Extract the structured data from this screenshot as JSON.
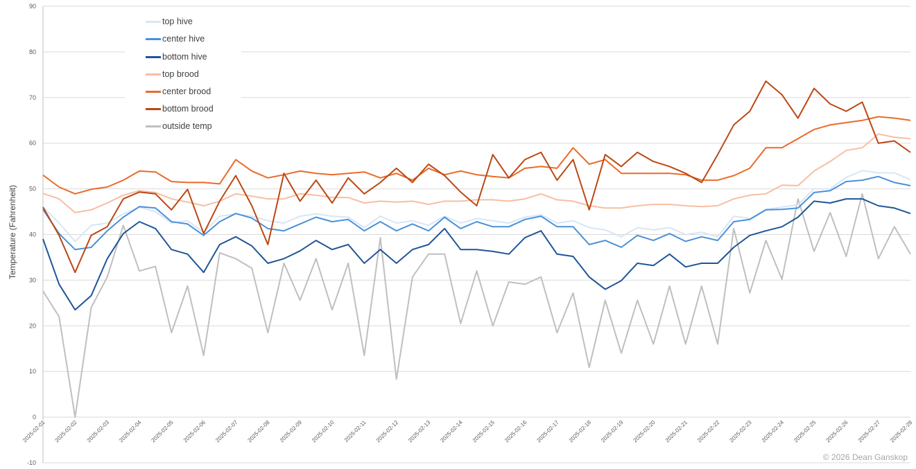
{
  "chart_data": {
    "type": "line",
    "title": "",
    "xlabel": "",
    "ylabel": "Temperature (Fahrenheit)",
    "ylim": [
      -10,
      90
    ],
    "yticks": [
      "-10",
      "0",
      "10",
      "20",
      "30",
      "40",
      "50",
      "60",
      "70",
      "80",
      "90"
    ],
    "xticks": [
      "2025-02-01",
      "2025-02-02",
      "2025-02-03",
      "2025-02-04",
      "2025-02-05",
      "2025-02-06",
      "2025-02-07",
      "2025-02-08",
      "2025-02-09",
      "2025-02-10",
      "2025-02-11",
      "2025-02-12",
      "2025-02-13",
      "2025-02-14",
      "2025-02-15",
      "2025-02-16",
      "2025-02-17",
      "2025-02-18",
      "2025-02-19",
      "2025-02-20",
      "2025-02-21",
      "2025-02-22",
      "2025-02-23",
      "2025-02-24",
      "2025-02-25",
      "2025-02-26",
      "2025-02-27",
      "2025-02-28"
    ],
    "grid": true,
    "legend_position": "top-left",
    "x": [
      "2025-02-01T00:00",
      "2025-02-01T12:00",
      "2025-02-02T00:00",
      "2025-02-02T12:00",
      "2025-02-03T00:00",
      "2025-02-03T12:00",
      "2025-02-04T00:00",
      "2025-02-04T12:00",
      "2025-02-05T00:00",
      "2025-02-05T12:00",
      "2025-02-06T00:00",
      "2025-02-06T12:00",
      "2025-02-07T00:00",
      "2025-02-07T12:00",
      "2025-02-08T00:00",
      "2025-02-08T12:00",
      "2025-02-09T00:00",
      "2025-02-09T12:00",
      "2025-02-10T00:00",
      "2025-02-10T12:00",
      "2025-02-11T00:00",
      "2025-02-11T12:00",
      "2025-02-12T00:00",
      "2025-02-12T12:00",
      "2025-02-13T00:00",
      "2025-02-13T12:00",
      "2025-02-14T00:00",
      "2025-02-14T12:00",
      "2025-02-15T00:00",
      "2025-02-15T12:00",
      "2025-02-16T00:00",
      "2025-02-16T12:00",
      "2025-02-17T00:00",
      "2025-02-17T12:00",
      "2025-02-18T00:00",
      "2025-02-18T12:00",
      "2025-02-19T00:00",
      "2025-02-19T12:00",
      "2025-02-20T00:00",
      "2025-02-20T12:00",
      "2025-02-21T00:00",
      "2025-02-21T12:00",
      "2025-02-22T00:00",
      "2025-02-22T12:00",
      "2025-02-23T00:00",
      "2025-02-23T12:00",
      "2025-02-24T00:00",
      "2025-02-24T12:00",
      "2025-02-25T00:00",
      "2025-02-25T12:00",
      "2025-02-26T00:00",
      "2025-02-26T12:00",
      "2025-02-27T00:00",
      "2025-02-27T12:00",
      "2025-02-28T00:00"
    ],
    "series": [
      {
        "name": "top hive",
        "color": "#d6e6f7",
        "values": [
          46,
          42.5,
          38.5,
          42,
          42.5,
          44.5,
          46,
          45,
          42.5,
          43,
          40.5,
          44,
          44.5,
          44,
          43,
          42.5,
          44,
          44.5,
          44,
          43.8,
          41.5,
          44,
          42.5,
          43,
          42,
          44,
          42.5,
          43.5,
          43,
          42.5,
          43.8,
          44.3,
          42.5,
          43,
          41.5,
          41,
          39.5,
          41.5,
          41,
          41.5,
          40,
          40.5,
          39.5,
          44,
          43.5,
          45.5,
          46,
          46.5,
          50,
          50,
          52.5,
          54,
          53.5,
          53.5,
          52
        ]
      },
      {
        "name": "center hive",
        "color": "#4a90d9",
        "values": [
          45.5,
          40.2,
          36.7,
          37.2,
          40.8,
          43.8,
          46.1,
          45.8,
          42.8,
          42.3,
          39.8,
          42.8,
          44.6,
          43.6,
          41.3,
          40.8,
          42.3,
          43.8,
          42.8,
          43.3,
          40.8,
          42.8,
          40.8,
          42.3,
          40.8,
          43.8,
          41.3,
          42.8,
          41.7,
          41.7,
          43.3,
          44,
          41.7,
          41.7,
          37.8,
          38.7,
          37.2,
          39.8,
          38.7,
          40.2,
          38.5,
          39.5,
          38.7,
          42.8,
          43.3,
          45.4,
          45.5,
          45.8,
          49.2,
          49.6,
          51.6,
          51.9,
          52.7,
          51.4,
          50.7
        ]
      },
      {
        "name": "bottom hive",
        "color": "#1f5597",
        "values": [
          39,
          29.1,
          23.5,
          26.6,
          34.7,
          40.2,
          42.8,
          41.3,
          36.7,
          35.7,
          31.7,
          37.8,
          39.5,
          37.5,
          33.7,
          34.7,
          36.4,
          38.7,
          36.7,
          37.8,
          33.7,
          36.7,
          33.7,
          36.7,
          37.8,
          41.3,
          36.7,
          36.7,
          36.3,
          35.7,
          39.3,
          40.8,
          35.7,
          35.2,
          30.7,
          28,
          29.9,
          33.7,
          33.2,
          35.7,
          32.9,
          33.7,
          33.7,
          37.2,
          39.8,
          40.8,
          41.7,
          43.8,
          47.3,
          46.9,
          47.8,
          47.8,
          46.3,
          45.8,
          44.6
        ]
      },
      {
        "name": "top brood",
        "color": "#f7bea0",
        "values": [
          49,
          47.8,
          44.8,
          45.4,
          46.9,
          48.6,
          49.6,
          49.2,
          47.8,
          47.1,
          46.3,
          47.3,
          48.9,
          48.4,
          47.8,
          47.8,
          48.9,
          48.6,
          48.1,
          48.1,
          46.9,
          47.3,
          47.1,
          47.3,
          46.6,
          47.3,
          47.3,
          47.6,
          47.6,
          47.3,
          47.8,
          48.9,
          47.6,
          47.3,
          46.3,
          45.8,
          45.8,
          46.3,
          46.6,
          46.6,
          46.3,
          46.1,
          46.3,
          47.8,
          48.6,
          48.9,
          50.8,
          50.7,
          53.9,
          56,
          58.4,
          59,
          62,
          61.3,
          61
        ]
      },
      {
        "name": "center brood",
        "color": "#eb6a28",
        "values": [
          53,
          50.4,
          48.9,
          49.9,
          50.4,
          51.9,
          53.9,
          53.7,
          51.6,
          51.4,
          51.4,
          51.1,
          56.4,
          53.9,
          52.4,
          53.1,
          53.9,
          53.4,
          53.1,
          53.4,
          53.7,
          52.4,
          53.4,
          51.9,
          54.5,
          53.1,
          53.9,
          53.1,
          52.7,
          52.4,
          54.5,
          54.9,
          54.5,
          59,
          55.4,
          56.4,
          53.4,
          53.4,
          53.4,
          53.4,
          53.1,
          51.9,
          51.9,
          52.9,
          54.5,
          59,
          59,
          61,
          63,
          64,
          64.5,
          65,
          65.8,
          65.5,
          65
        ]
      },
      {
        "name": "bottom brood",
        "color": "#bb4714",
        "values": [
          46,
          39.8,
          31.7,
          39.8,
          41.7,
          47.8,
          49.3,
          48.9,
          45.4,
          49.9,
          40.2,
          47.3,
          52.9,
          46.3,
          37.8,
          53.4,
          47.3,
          51.9,
          46.9,
          52.4,
          48.9,
          51.4,
          54.5,
          51.4,
          55.4,
          52.9,
          49.3,
          46.3,
          57.5,
          52.4,
          56.4,
          58,
          51.9,
          56.4,
          45.4,
          57.5,
          54.9,
          58,
          56,
          54.9,
          53.4,
          51.4,
          57.5,
          64,
          67,
          73.6,
          70.6,
          65.5,
          72,
          68.6,
          67,
          69,
          60,
          60.5,
          58
        ]
      },
      {
        "name": "outside temp",
        "color": "#bfbfbf",
        "values": [
          27.6,
          22,
          0,
          24,
          30.7,
          42,
          32,
          33,
          18.5,
          28.7,
          13.5,
          36,
          34.7,
          32.6,
          18.5,
          33.7,
          25.6,
          34.7,
          23.5,
          33.7,
          13.5,
          39.3,
          8.3,
          30.7,
          35.7,
          35.7,
          20.5,
          32,
          20,
          29.6,
          29.1,
          30.7,
          18.5,
          27.2,
          10.9,
          25.6,
          14,
          25.6,
          16,
          28.7,
          16,
          28.7,
          16,
          41.3,
          27.2,
          38.7,
          30.2,
          47.8,
          36.3,
          44.8,
          35.2,
          48.9,
          34.7,
          41.7,
          35.7
        ]
      }
    ]
  },
  "footer": {
    "copyright": "© 2026 Dean Ganskop"
  }
}
